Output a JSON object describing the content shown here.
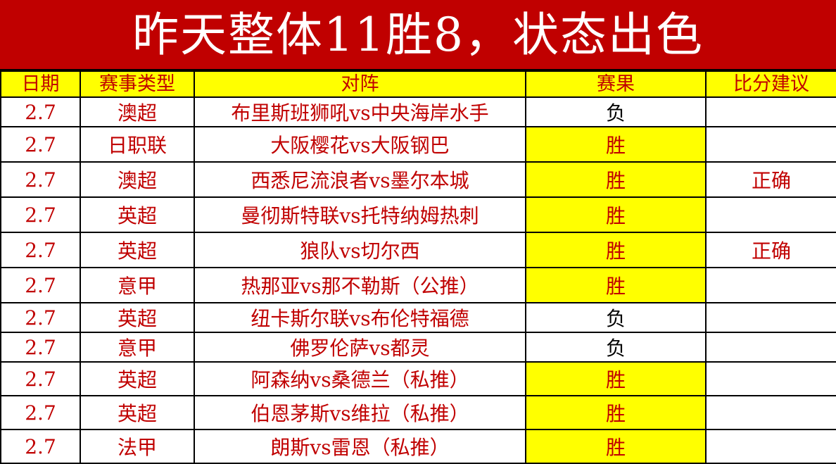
{
  "title": "昨天整体11胜8，状态出色",
  "colors": {
    "title_bg": "#c00000",
    "text_red": "#c00000",
    "highlight": "#ffff00"
  },
  "headers": [
    "日期",
    "赛事类型",
    "对阵",
    "赛果",
    "比分建议"
  ],
  "rows": [
    {
      "date": "2.7",
      "league": "澳超",
      "match": "布里斯班狮吼vs中央海岸水手",
      "result": "负",
      "score": ""
    },
    {
      "date": "2.7",
      "league": "日职联",
      "match": "大阪樱花vs大阪钢巴",
      "result": "胜",
      "score": ""
    },
    {
      "date": "2.7",
      "league": "澳超",
      "match": "西悉尼流浪者vs墨尔本城",
      "result": "胜",
      "score": "正确"
    },
    {
      "date": "2.7",
      "league": "英超",
      "match": "曼彻斯特联vs托特纳姆热刺",
      "result": "胜",
      "score": ""
    },
    {
      "date": "2.7",
      "league": "英超",
      "match": "狼队vs切尔西",
      "result": "胜",
      "score": "正确"
    },
    {
      "date": "2.7",
      "league": "意甲",
      "match": "热那亚vs那不勒斯（公推）",
      "result": "胜",
      "score": ""
    },
    {
      "date": "2.7",
      "league": "英超",
      "match": "纽卡斯尔联vs布伦特福德",
      "result": "负",
      "score": ""
    },
    {
      "date": "2.7",
      "league": "意甲",
      "match": "佛罗伦萨vs都灵",
      "result": "负",
      "score": ""
    },
    {
      "date": "2.7",
      "league": "英超",
      "match": "阿森纳vs桑德兰（私推）",
      "result": "胜",
      "score": ""
    },
    {
      "date": "2.7",
      "league": "英超",
      "match": "伯恩茅斯vs维拉（私推）",
      "result": "胜",
      "score": ""
    },
    {
      "date": "2.7",
      "league": "法甲",
      "match": "朗斯vs雷恩（私推）",
      "result": "胜",
      "score": ""
    }
  ]
}
